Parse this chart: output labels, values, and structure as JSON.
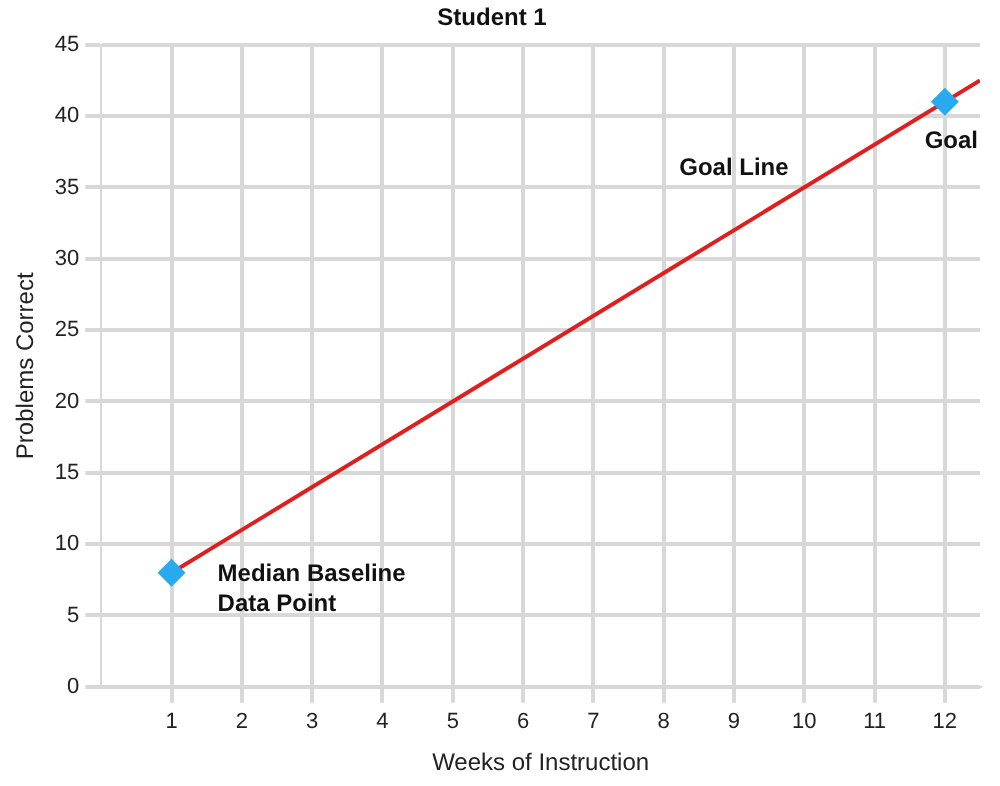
{
  "chart_data": {
    "type": "line",
    "title": "Student 1",
    "xlabel": "Weeks of Instruction",
    "ylabel": "Problems Correct",
    "series": [
      {
        "type": "line",
        "color": "#dd1f1f",
        "x": [
          1,
          12.5
        ],
        "values": [
          8,
          42.5
        ],
        "marker": "none"
      },
      {
        "type": "scatter",
        "color": "#2aaaee",
        "x": [
          1,
          12
        ],
        "values": [
          8,
          41
        ],
        "marker": "diamond"
      }
    ],
    "xlim": [
      0,
      12.5
    ],
    "xticks": [
      1,
      2,
      3,
      4,
      5,
      6,
      7,
      8,
      9,
      10,
      11,
      12
    ],
    "ylim": [
      0,
      45
    ],
    "yticks": [
      0,
      5,
      10,
      15,
      20,
      25,
      30,
      35,
      40,
      45
    ],
    "grid": true,
    "legend": false,
    "annotations": [
      {
        "text": "Goal Line",
        "x": 9,
        "y": 32
      },
      {
        "text": "Goal",
        "x": 12,
        "y": 41
      },
      {
        "text": "Median Baseline\nData Point",
        "x": 1,
        "y": 8
      }
    ]
  }
}
